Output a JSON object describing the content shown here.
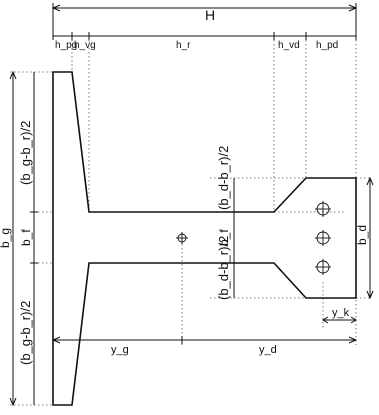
{
  "labels": {
    "H": "H",
    "h_pg": "h_pg",
    "h_vg": "h_vg",
    "h_r": "h_r",
    "h_vd": "h_vd",
    "h_pd": "h_pd",
    "b_g": "b_g",
    "b_f_left": "b_f",
    "b_g_minus_b_r_top": "(b_g-b_r)/2",
    "b_g_minus_b_r_bottom": "(b_g-b_r)/2",
    "b_d_minus_b_r_top": "(b_d-b_r)/2",
    "b_d_minus_b_r_bottom": "(b_d-b_r)/2",
    "b_f_mid": "b_f",
    "b_d": "b_d",
    "y_g": "y_g",
    "y_d": "y_d",
    "y_k": "y_k"
  },
  "colors": {
    "line": "#111111",
    "dotted": "#555555",
    "background": "#ffffff"
  }
}
